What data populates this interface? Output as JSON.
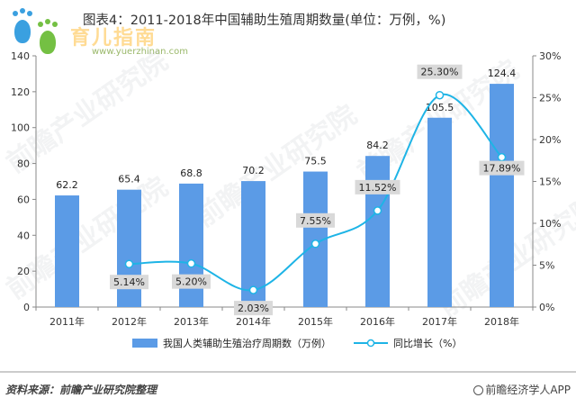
{
  "logo": {
    "text": "育儿指南",
    "url": "www.yuerzhinan.com"
  },
  "watermark_text": "前瞻产业研究院",
  "footer": {
    "source": "资料来源：前瞻产业研究院整理",
    "credit": "前瞻经济学人APP"
  },
  "colors": {
    "bar": "#5B9BE6",
    "line": "#1EB4E6",
    "label_bg": "#D9D9D9"
  },
  "chart_data": {
    "type": "bar",
    "title": "图表4：2011-2018年中国辅助生殖周期数量(单位：万例，%)",
    "categories": [
      "2011年",
      "2012年",
      "2013年",
      "2014年",
      "2015年",
      "2016年",
      "2017年",
      "2018年"
    ],
    "series": [
      {
        "name": "我国人类辅助生殖治疗周期数（万例）",
        "type": "bar",
        "axis": "left",
        "values": [
          62.2,
          65.4,
          68.8,
          70.2,
          75.5,
          84.2,
          105.5,
          124.4
        ],
        "labels": [
          "62.2",
          "65.4",
          "68.8",
          "70.2",
          "75.5",
          "84.2",
          "105.5",
          "124.4"
        ]
      },
      {
        "name": "同比增长（%）",
        "type": "line",
        "axis": "right",
        "values": [
          null,
          5.14,
          5.2,
          2.03,
          7.55,
          11.52,
          25.3,
          17.89
        ],
        "labels": [
          null,
          "5.14%",
          "5.20%",
          "2.03%",
          "7.55%",
          "11.52%",
          "25.30%",
          "17.89%"
        ]
      }
    ],
    "y_left": {
      "min": 0,
      "max": 140,
      "ticks": [
        "0",
        "20",
        "40",
        "60",
        "80",
        "100",
        "120",
        "140"
      ]
    },
    "y_right": {
      "min": 0,
      "max": 30,
      "ticks": [
        "0%",
        "5%",
        "10%",
        "15%",
        "20%",
        "25%",
        "30%"
      ]
    },
    "legend_position": "bottom",
    "grid": false
  }
}
